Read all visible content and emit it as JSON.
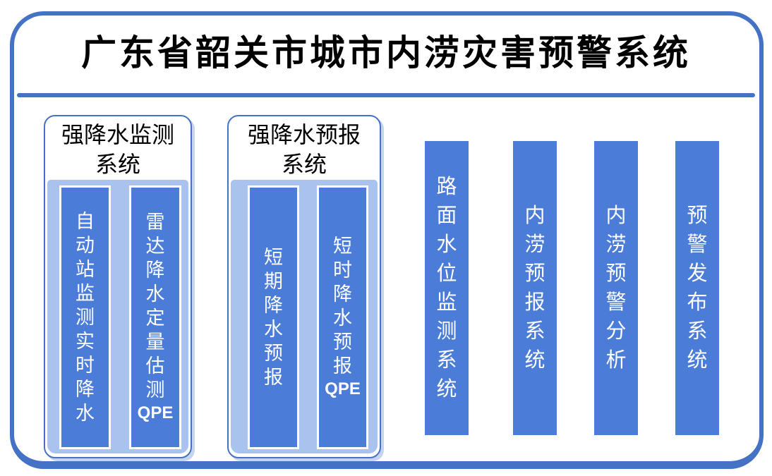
{
  "title": "广东省韶关市城市内涝灾害预警系统",
  "colors": {
    "frame_border": "#4472C4",
    "bar_fill": "#4A7CD8",
    "panel_fill": "#A9C3EE",
    "bar_text": "#FFFFFF",
    "title_text": "#000000"
  },
  "groups": [
    {
      "title": "强降水监测\n系统",
      "bars": [
        {
          "label": "自动站监测实时降水",
          "suffix": ""
        },
        {
          "label": "雷达降水定量估测",
          "suffix": "QPE"
        }
      ]
    },
    {
      "title": "强降水预报\n系统",
      "bars": [
        {
          "label": "短期降水预报",
          "suffix": ""
        },
        {
          "label": "短时降水预报",
          "suffix": "QPE"
        }
      ]
    }
  ],
  "pipeline_bars": [
    {
      "label": "路面水位监测系统"
    },
    {
      "label": "内涝预报系统"
    },
    {
      "label": "内涝预警分析"
    },
    {
      "label": "预警发布系统"
    }
  ]
}
